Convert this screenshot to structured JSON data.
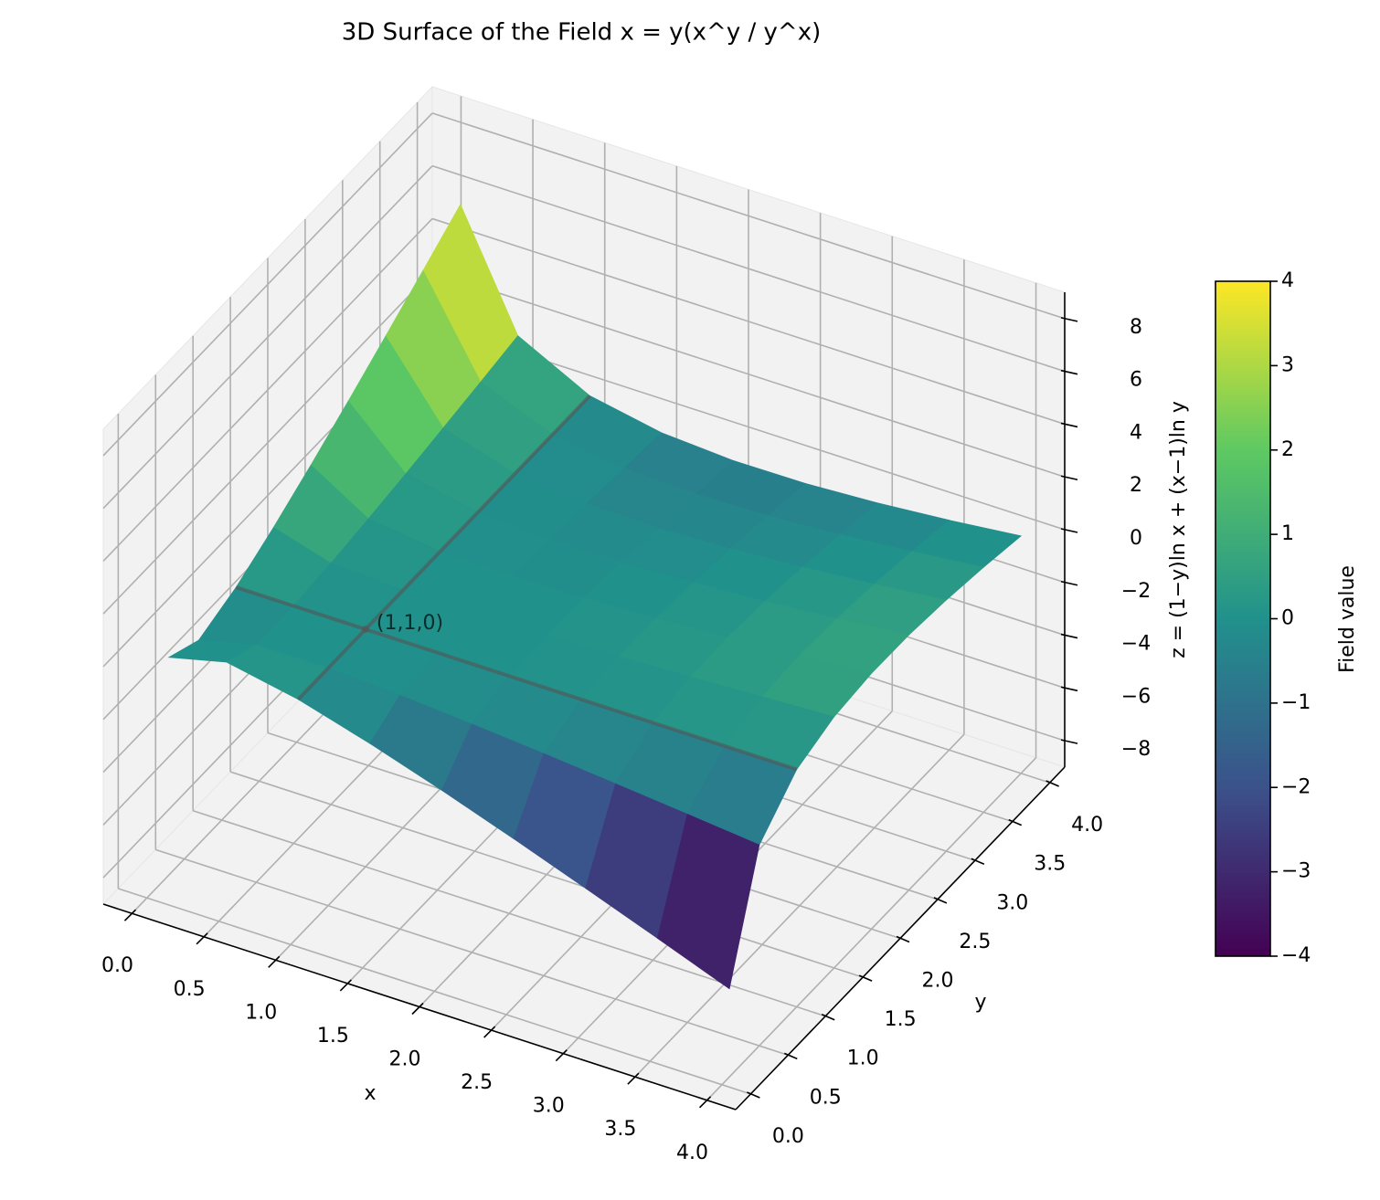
{
  "chart_data": {
    "type": "surface",
    "title": "3D Surface of the Field x = y(x^y / y^x)",
    "x_label": "x",
    "y_label": "y",
    "z_label": "z = (1−y)ln x + (x−1)ln y",
    "colorbar_label": "Field value",
    "x": [
      0.1,
      0.5,
      1.0,
      1.5,
      2.0,
      2.5,
      3.0,
      3.5,
      4.0
    ],
    "y": [
      0.1,
      0.5,
      1.0,
      1.5,
      2.0,
      2.5,
      3.0,
      3.5,
      4.0
    ],
    "z": [
      [
        0,
        0.53,
        0,
        -0.79,
        -1.68,
        -2.63,
        -3.62,
        -4.63,
        -5.66
      ],
      [
        -0.53,
        0,
        0,
        -0.14,
        -0.35,
        -0.58,
        -0.84,
        -1.11,
        -1.39
      ],
      [
        0,
        0,
        0,
        0,
        0,
        0,
        0,
        0,
        0
      ],
      [
        0.79,
        0.14,
        0,
        0,
        0.06,
        0.15,
        0.26,
        0.39,
        0.52
      ],
      [
        1.68,
        0.35,
        0,
        -0.06,
        0,
        0.12,
        0.29,
        0.48,
        0.69
      ],
      [
        2.63,
        0.58,
        0,
        -0.15,
        -0.12,
        0,
        0.18,
        0.41,
        0.67
      ],
      [
        3.62,
        0.84,
        0,
        -0.26,
        -0.29,
        -0.18,
        0,
        0.24,
        0.52
      ],
      [
        4.63,
        1.11,
        0,
        -0.39,
        -0.48,
        -0.41,
        -0.24,
        0,
        0.29
      ],
      [
        5.66,
        1.39,
        0,
        -0.52,
        -0.69,
        -0.67,
        -0.52,
        -0.29,
        0
      ]
    ],
    "xlim": [
      -0.2,
      4.2
    ],
    "ylim": [
      -0.2,
      4.2
    ],
    "zlim": [
      -9,
      9
    ],
    "xticks": [
      {
        "value": 0,
        "label": "0.0"
      },
      0.5,
      {
        "value": 1,
        "label": "1.0"
      },
      1.5,
      {
        "value": 2,
        "label": "2.0"
      },
      2.5,
      {
        "value": 3,
        "label": "3.0"
      },
      3.5,
      {
        "value": 4,
        "label": "4.0"
      }
    ],
    "yticks": [
      {
        "value": 0,
        "label": "0.0"
      },
      0.5,
      {
        "value": 1,
        "label": "1.0"
      },
      1.5,
      {
        "value": 2,
        "label": "2.0"
      },
      2.5,
      {
        "value": 3,
        "label": "3.0"
      },
      3.5,
      {
        "value": 4,
        "label": "4.0"
      }
    ],
    "zticks": [
      {
        "value": -8,
        "label": "−8"
      },
      {
        "value": -6,
        "label": "−6"
      },
      {
        "value": -4,
        "label": "−4"
      },
      {
        "value": -2,
        "label": "−2"
      },
      0,
      2,
      4,
      6,
      8
    ],
    "colormap": "viridis",
    "clim": [
      -4,
      4
    ],
    "colorbar_ticks": [
      {
        "value": -4,
        "label": "−4"
      },
      {
        "value": -3,
        "label": "−3"
      },
      {
        "value": -2,
        "label": "−2"
      },
      {
        "value": -1,
        "label": "−1"
      },
      0,
      1,
      2,
      3,
      4
    ],
    "annotation": {
      "text": "(1,1,0)",
      "x": 1,
      "y": 1,
      "z": 0
    },
    "grid": true
  }
}
